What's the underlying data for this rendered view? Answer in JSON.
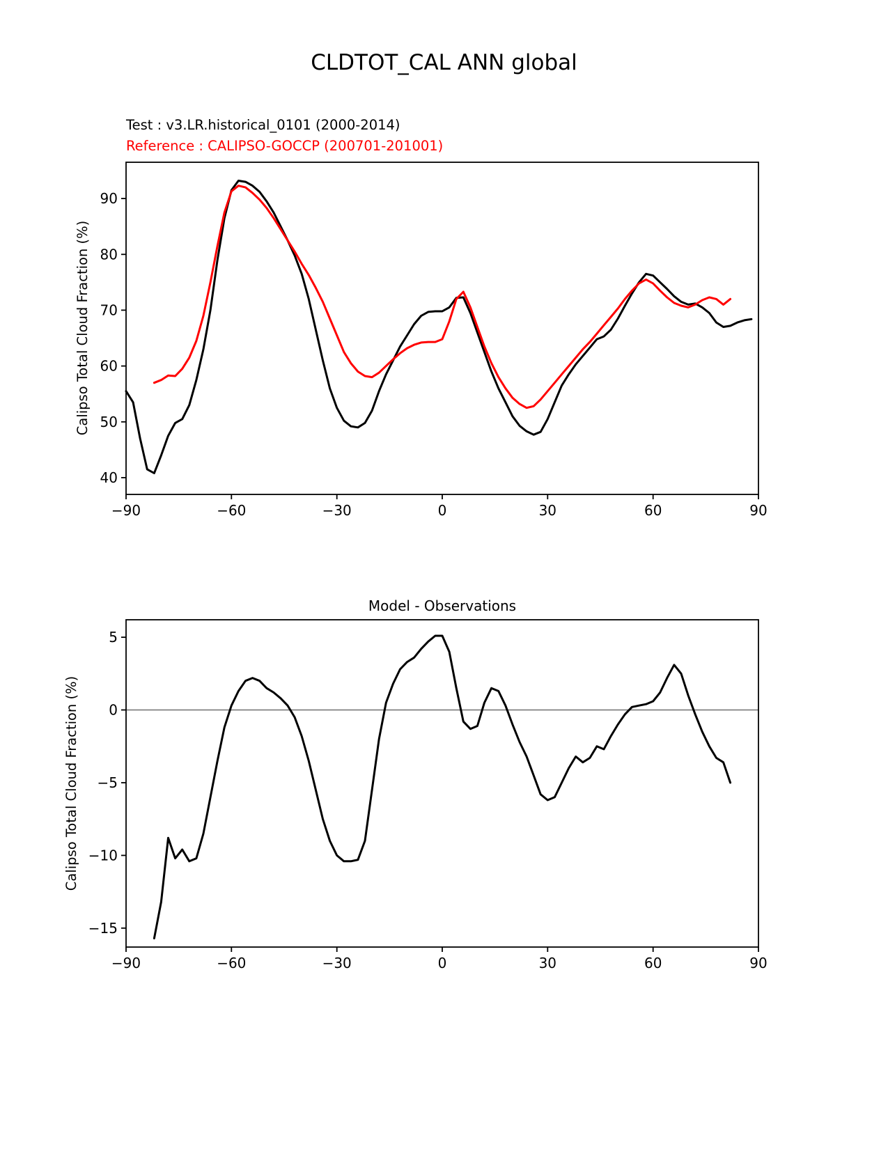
{
  "figure": {
    "title": "CLDTOT_CAL ANN global"
  },
  "top_chart": {
    "test_label": "Test : v3.LR.historical_0101 (2000-2014)",
    "reference_label": "Reference : CALIPSO-GOCCP (200701-201001)",
    "ylabel": "Calipso Total Cloud Fraction (%)"
  },
  "bottom_chart": {
    "title": "Model - Observations",
    "ylabel": "Calipso Total Cloud Fraction (%)"
  },
  "colors": {
    "test_line": "#000000",
    "reference_line": "#ff0000",
    "zero_line": "#808080"
  },
  "chart_data": [
    {
      "type": "line",
      "title": "CLDTOT_CAL ANN global",
      "xlabel": "",
      "ylabel": "Calipso Total Cloud Fraction (%)",
      "xlim": [
        -90,
        90
      ],
      "ylim": [
        37,
        96.5
      ],
      "xticks": [
        -90,
        -60,
        -30,
        0,
        30,
        60,
        90
      ],
      "yticks": [
        40,
        50,
        60,
        70,
        80,
        90
      ],
      "grid": false,
      "legend_position": "above-left-as-text",
      "series": [
        {
          "name": "Test : v3.LR.historical_0101 (2000-2014)",
          "color": "#000000",
          "x": [
            -90,
            -88,
            -86,
            -84,
            -82,
            -80,
            -78,
            -76,
            -74,
            -72,
            -70,
            -68,
            -66,
            -64,
            -62,
            -60,
            -58,
            -56,
            -54,
            -52,
            -50,
            -48,
            -46,
            -44,
            -42,
            -40,
            -38,
            -36,
            -34,
            -32,
            -30,
            -28,
            -26,
            -24,
            -22,
            -20,
            -18,
            -16,
            -14,
            -12,
            -10,
            -8,
            -6,
            -4,
            -2,
            0,
            2,
            4,
            6,
            8,
            10,
            12,
            14,
            16,
            18,
            20,
            22,
            24,
            26,
            28,
            30,
            32,
            34,
            36,
            38,
            40,
            42,
            44,
            46,
            48,
            50,
            52,
            54,
            56,
            58,
            60,
            62,
            64,
            66,
            68,
            70,
            72,
            74,
            76,
            78,
            80,
            82,
            84,
            86,
            88
          ],
          "y": [
            55.5,
            53.5,
            47.0,
            41.5,
            40.8,
            44.0,
            47.5,
            49.8,
            50.5,
            53.0,
            57.5,
            63.0,
            70.0,
            79.0,
            86.5,
            91.5,
            93.2,
            93.0,
            92.3,
            91.2,
            89.5,
            87.5,
            85.0,
            82.5,
            79.8,
            76.5,
            72.0,
            66.5,
            61.0,
            56.0,
            52.5,
            50.2,
            49.2,
            49.0,
            49.8,
            52.0,
            55.5,
            58.5,
            61.0,
            63.5,
            65.5,
            67.5,
            69.0,
            69.7,
            69.8,
            69.8,
            70.5,
            72.2,
            72.3,
            69.5,
            66.0,
            62.5,
            59.0,
            56.0,
            53.5,
            51.0,
            49.3,
            48.3,
            47.7,
            48.2,
            50.5,
            53.5,
            56.5,
            58.5,
            60.3,
            61.8,
            63.3,
            64.8,
            65.3,
            66.5,
            68.5,
            70.8,
            73.0,
            75.0,
            76.5,
            76.2,
            75.0,
            73.8,
            72.5,
            71.5,
            71.0,
            71.2,
            70.5,
            69.5,
            67.8,
            67.0,
            67.2,
            67.8,
            68.2,
            68.4
          ]
        },
        {
          "name": "Reference : CALIPSO-GOCCP (200701-201001)",
          "color": "#ff0000",
          "x": [
            -82,
            -80,
            -78,
            -76,
            -74,
            -72,
            -70,
            -68,
            -66,
            -64,
            -62,
            -60,
            -58,
            -56,
            -54,
            -52,
            -50,
            -48,
            -46,
            -44,
            -42,
            -40,
            -38,
            -36,
            -34,
            -32,
            -30,
            -28,
            -26,
            -24,
            -22,
            -20,
            -18,
            -16,
            -14,
            -12,
            -10,
            -8,
            -6,
            -4,
            -2,
            0,
            2,
            4,
            6,
            8,
            10,
            12,
            14,
            16,
            18,
            20,
            22,
            24,
            26,
            28,
            30,
            32,
            34,
            36,
            38,
            40,
            42,
            44,
            46,
            48,
            50,
            52,
            54,
            56,
            58,
            60,
            62,
            64,
            66,
            68,
            70,
            72,
            74,
            76,
            78,
            80,
            82
          ],
          "y": [
            57.0,
            57.5,
            58.3,
            58.2,
            59.5,
            61.5,
            64.5,
            69.0,
            75.0,
            81.5,
            87.5,
            91.3,
            92.3,
            92.0,
            91.0,
            89.8,
            88.3,
            86.5,
            84.5,
            82.5,
            80.5,
            78.3,
            76.3,
            74.0,
            71.5,
            68.5,
            65.5,
            62.5,
            60.5,
            59.0,
            58.2,
            58.0,
            58.8,
            60.0,
            61.2,
            62.3,
            63.2,
            63.8,
            64.2,
            64.3,
            64.3,
            64.8,
            68.0,
            72.0,
            73.3,
            70.5,
            67.0,
            63.5,
            60.5,
            58.0,
            56.0,
            54.3,
            53.2,
            52.5,
            52.8,
            54.0,
            55.5,
            57.0,
            58.5,
            60.0,
            61.5,
            63.0,
            64.3,
            65.8,
            67.3,
            68.8,
            70.3,
            72.0,
            73.5,
            74.8,
            75.5,
            74.8,
            73.5,
            72.3,
            71.3,
            70.8,
            70.5,
            71.0,
            71.8,
            72.3,
            72.0,
            71.0,
            72.0
          ]
        }
      ]
    },
    {
      "type": "line",
      "title": "Model - Observations",
      "xlabel": "",
      "ylabel": "Calipso Total Cloud Fraction (%)",
      "xlim": [
        -90,
        90
      ],
      "ylim": [
        -16.3,
        6.2
      ],
      "xticks": [
        -90,
        -60,
        -30,
        0,
        30,
        60,
        90
      ],
      "yticks": [
        5,
        0,
        -5,
        -10,
        -15
      ],
      "grid": false,
      "refline_y": 0,
      "refline_color": "#808080",
      "series": [
        {
          "name": "Model - Observations",
          "color": "#000000",
          "x": [
            -82,
            -80,
            -78,
            -76,
            -74,
            -72,
            -70,
            -68,
            -66,
            -64,
            -62,
            -60,
            -58,
            -56,
            -54,
            -52,
            -50,
            -48,
            -46,
            -44,
            -42,
            -40,
            -38,
            -36,
            -34,
            -32,
            -30,
            -28,
            -26,
            -24,
            -22,
            -20,
            -18,
            -16,
            -14,
            -12,
            -10,
            -8,
            -6,
            -4,
            -2,
            0,
            2,
            4,
            6,
            8,
            10,
            12,
            14,
            16,
            18,
            20,
            22,
            24,
            26,
            28,
            30,
            32,
            34,
            36,
            38,
            40,
            42,
            44,
            46,
            48,
            50,
            52,
            54,
            56,
            58,
            60,
            62,
            64,
            66,
            68,
            70,
            72,
            74,
            76,
            78,
            80,
            82
          ],
          "y": [
            -15.7,
            -13.2,
            -8.8,
            -10.2,
            -9.6,
            -10.4,
            -10.2,
            -8.5,
            -6.0,
            -3.5,
            -1.2,
            0.3,
            1.3,
            2.0,
            2.2,
            2.0,
            1.5,
            1.2,
            0.8,
            0.3,
            -0.5,
            -1.8,
            -3.5,
            -5.5,
            -7.5,
            -9.0,
            -10.0,
            -10.4,
            -10.4,
            -10.3,
            -9.0,
            -5.5,
            -2.0,
            0.5,
            1.8,
            2.8,
            3.3,
            3.6,
            4.2,
            4.7,
            5.1,
            5.1,
            4.0,
            1.5,
            -0.8,
            -1.3,
            -1.1,
            0.5,
            1.5,
            1.3,
            0.3,
            -1.0,
            -2.2,
            -3.2,
            -4.5,
            -5.8,
            -6.2,
            -6.0,
            -5.0,
            -4.0,
            -3.2,
            -3.6,
            -3.3,
            -2.5,
            -2.7,
            -1.8,
            -1.0,
            -0.3,
            0.2,
            0.3,
            0.4,
            0.6,
            1.2,
            2.2,
            3.1,
            2.5,
            1.0,
            -0.3,
            -1.5,
            -2.5,
            -3.3,
            -3.6,
            -5.0
          ]
        }
      ]
    }
  ]
}
